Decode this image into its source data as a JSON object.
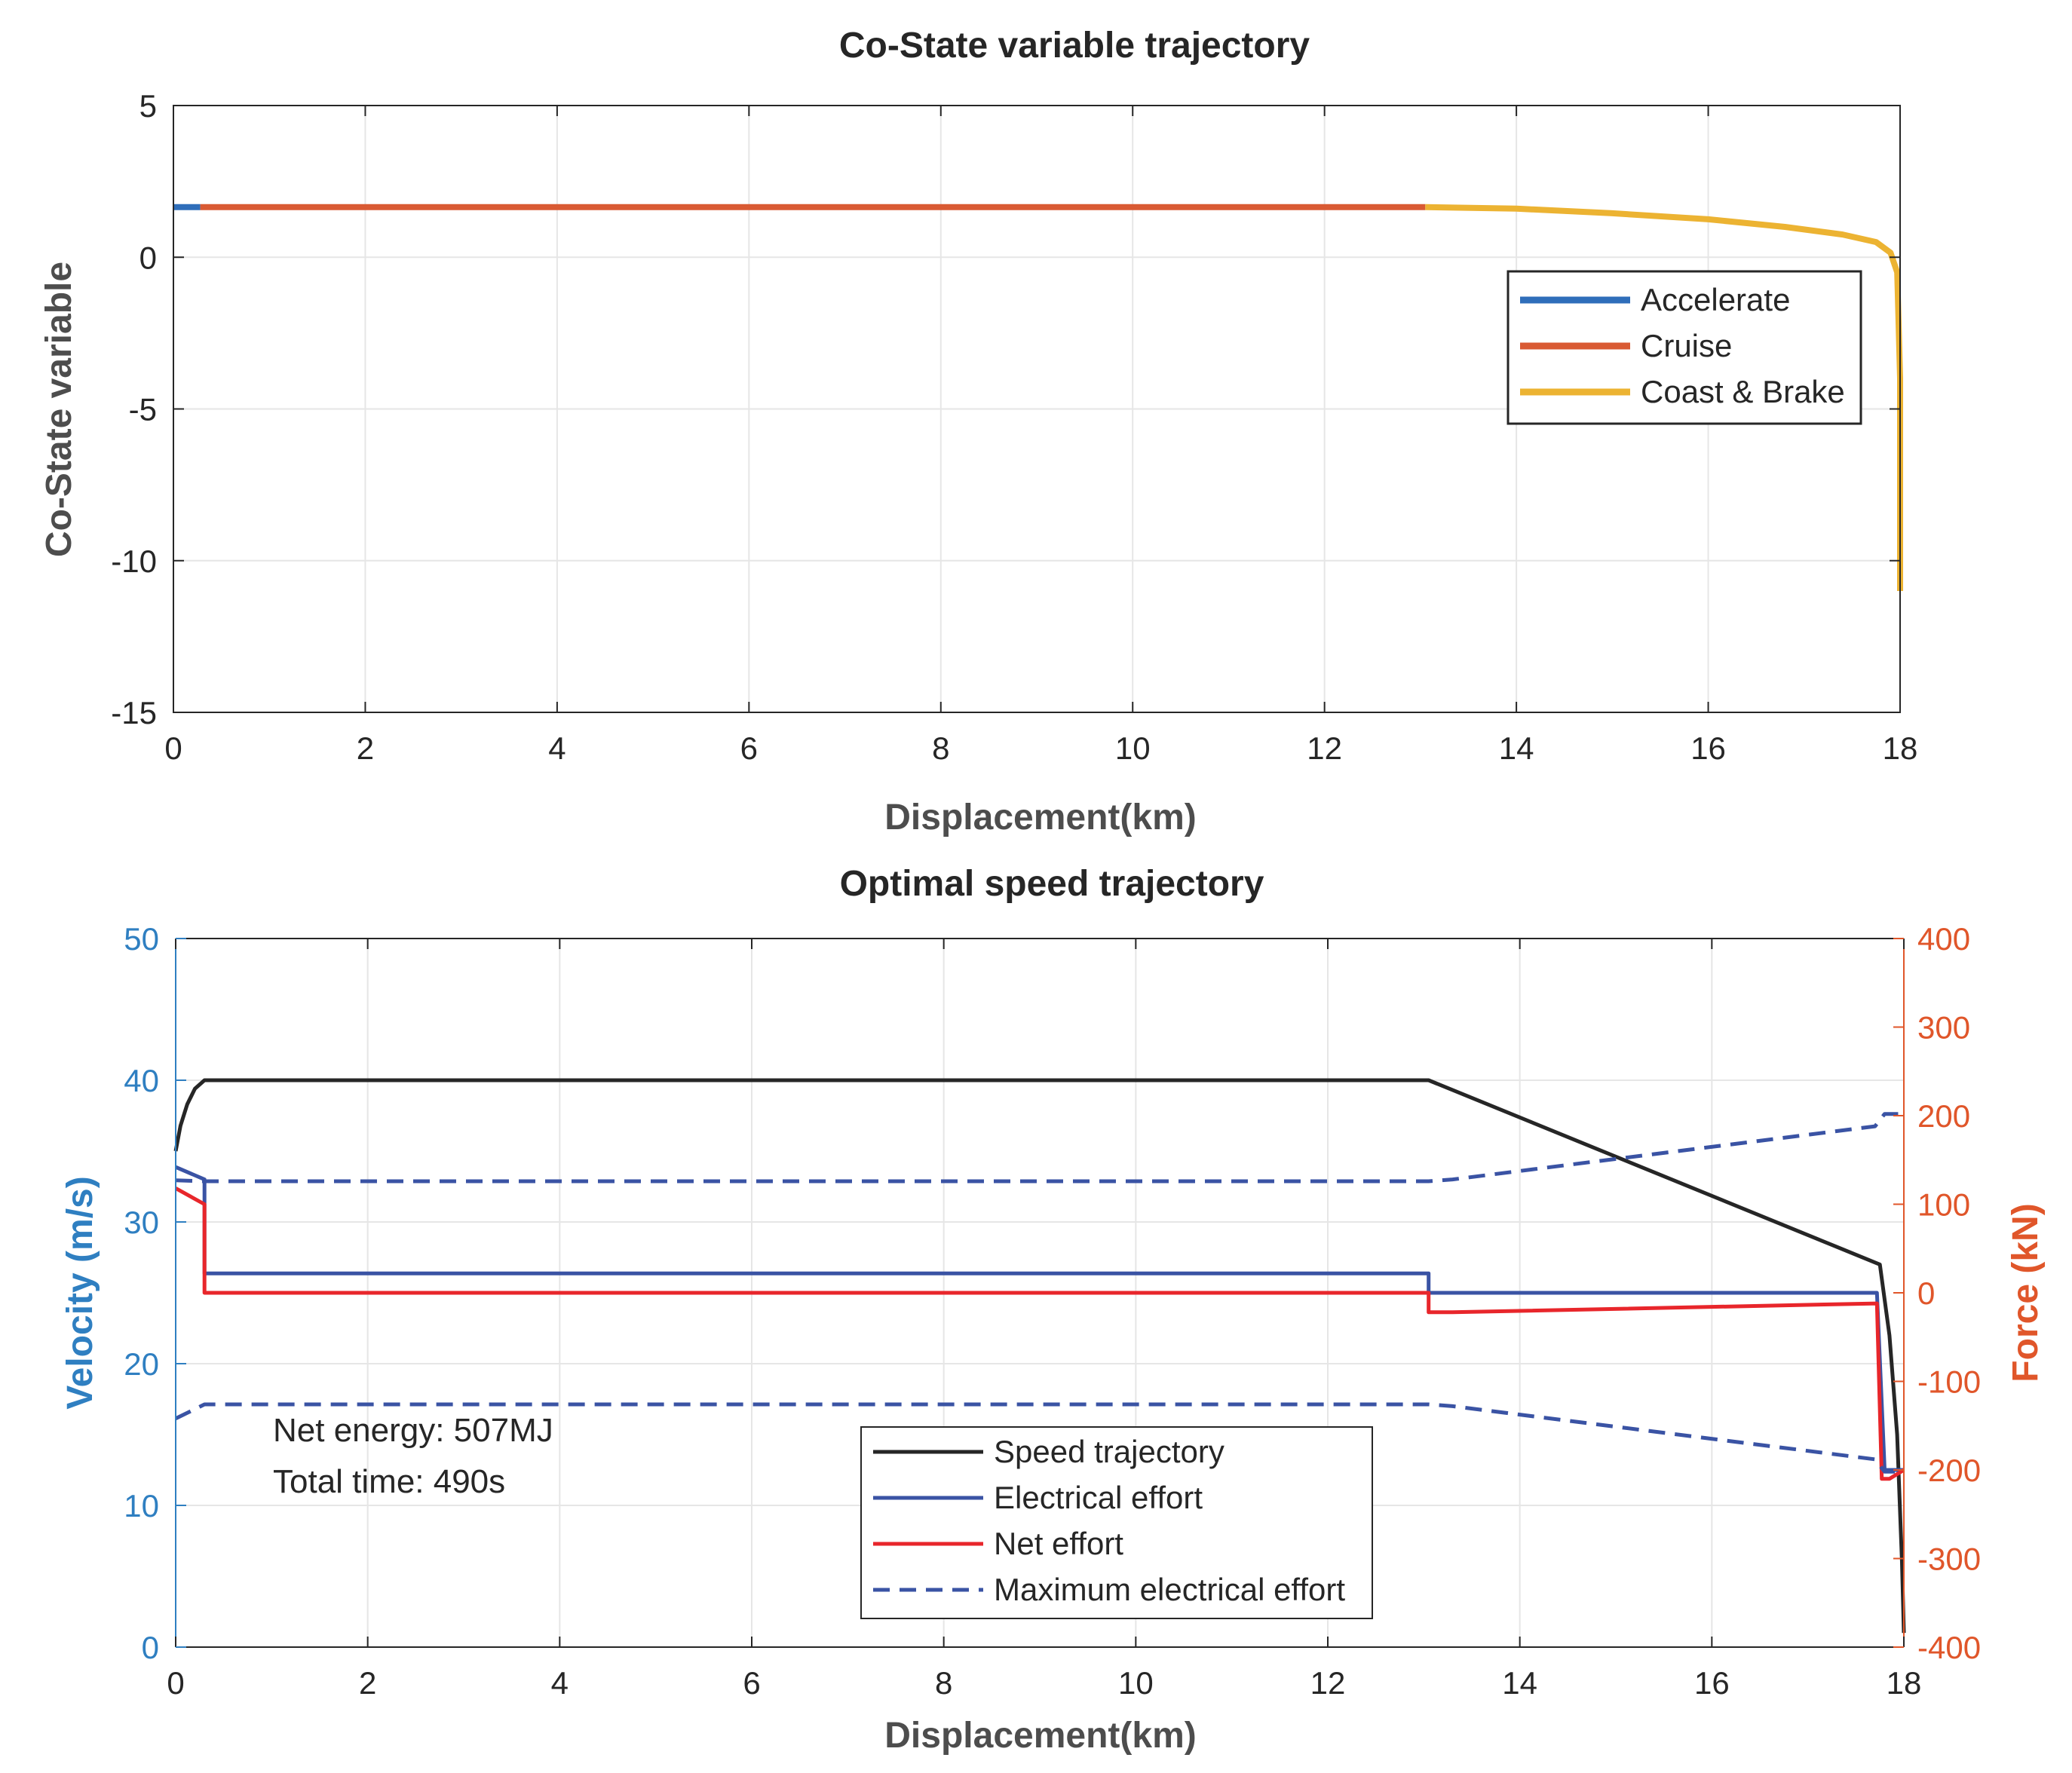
{
  "chart_data": [
    {
      "type": "line",
      "title": "Co-State variable trajectory",
      "xlabel": "Displacement(km)",
      "ylabel": "Co-State variable",
      "xlim": [
        0,
        18
      ],
      "ylim": [
        -15,
        5
      ],
      "xticks": [
        "0",
        "2",
        "4",
        "6",
        "8",
        "10",
        "12",
        "14",
        "16",
        "18"
      ],
      "yticks": [
        "5",
        "0",
        "-5",
        "-10",
        "-15"
      ],
      "grid": true,
      "legend_position": "right",
      "series": [
        {
          "name": "Accelerate",
          "color": "#2f6eba",
          "x": [
            0,
            0.28
          ],
          "y": [
            1.65,
            1.65
          ]
        },
        {
          "name": "Cruise",
          "color": "#d95a33",
          "x": [
            0.28,
            13.05
          ],
          "y": [
            1.65,
            1.65
          ]
        },
        {
          "name": "Coast & Brake",
          "color": "#ecb332",
          "x": [
            13.05,
            14,
            15,
            16,
            16.8,
            17.4,
            17.75,
            17.9,
            17.97,
            18.0,
            18.0
          ],
          "y": [
            1.65,
            1.6,
            1.45,
            1.25,
            1.0,
            0.75,
            0.5,
            0.15,
            -0.5,
            -4,
            -11
          ]
        }
      ]
    },
    {
      "type": "line",
      "title": "Optimal speed trajectory",
      "xlabel": "Displacement(km)",
      "ylabel": "Velocity (m/s)",
      "ylabel_right": "Force (kN)",
      "xlim": [
        0,
        18
      ],
      "ylim": [
        0,
        50
      ],
      "ylim_right": [
        -400,
        400
      ],
      "xticks": [
        "0",
        "2",
        "4",
        "6",
        "8",
        "10",
        "12",
        "14",
        "16",
        "18"
      ],
      "yticks": [
        "50",
        "40",
        "30",
        "20",
        "10",
        "0"
      ],
      "yticks_right": [
        "400",
        "300",
        "200",
        "100",
        "0",
        "-100",
        "-200",
        "-300",
        "-400"
      ],
      "grid": true,
      "legend_position": "bottom-center",
      "annotations": [
        "Net energy: 507MJ",
        "Total time: 490s"
      ],
      "colors": {
        "left_axis": "#2f7fc1",
        "right_axis": "#e0562a"
      },
      "series": [
        {
          "name": "Speed trajectory",
          "axis": "left",
          "color": "#262626",
          "dash": "solid",
          "x": [
            0,
            0.05,
            0.12,
            0.2,
            0.3,
            13.05,
            17.75,
            17.85,
            17.93,
            17.98,
            18.0
          ],
          "y": [
            35,
            36.8,
            38.3,
            39.4,
            40,
            40,
            27,
            22,
            15,
            6,
            1
          ]
        },
        {
          "name": "Electrical effort",
          "axis": "right",
          "color": "#3a53a4",
          "dash": "solid",
          "x": [
            0,
            0.3,
            0.3,
            13.05,
            13.05,
            17.72,
            17.8,
            18.0
          ],
          "y": [
            142,
            128,
            22,
            22,
            0,
            0,
            -200,
            -200
          ]
        },
        {
          "name": "Net effort",
          "axis": "right",
          "color": "#e8262b",
          "dash": "solid",
          "x": [
            0,
            0.3,
            0.3,
            13.05,
            13.05,
            13.3,
            17.72,
            17.77,
            17.85,
            18.0
          ],
          "y": [
            118,
            100,
            0,
            0,
            -22,
            -22,
            -12,
            -210,
            -210,
            -200
          ]
        },
        {
          "name": "Maximum electrical effort",
          "axis": "right",
          "color": "#3a53a4",
          "dash": "dashed",
          "x": [
            0,
            0.3,
            13.05,
            13.3,
            17.7,
            17.8,
            18.0
          ],
          "y": [
            127,
            126,
            126,
            128,
            188,
            202,
            202
          ]
        },
        {
          "name": "Maximum electrical effort (negative)",
          "axis": "right",
          "color": "#3a53a4",
          "dash": "dashed",
          "in_legend": false,
          "x": [
            0,
            0.3,
            13.05,
            13.3,
            17.7,
            17.8,
            18.0
          ],
          "y": [
            -142,
            -126,
            -126,
            -128,
            -188,
            -202,
            -202
          ]
        }
      ]
    }
  ]
}
